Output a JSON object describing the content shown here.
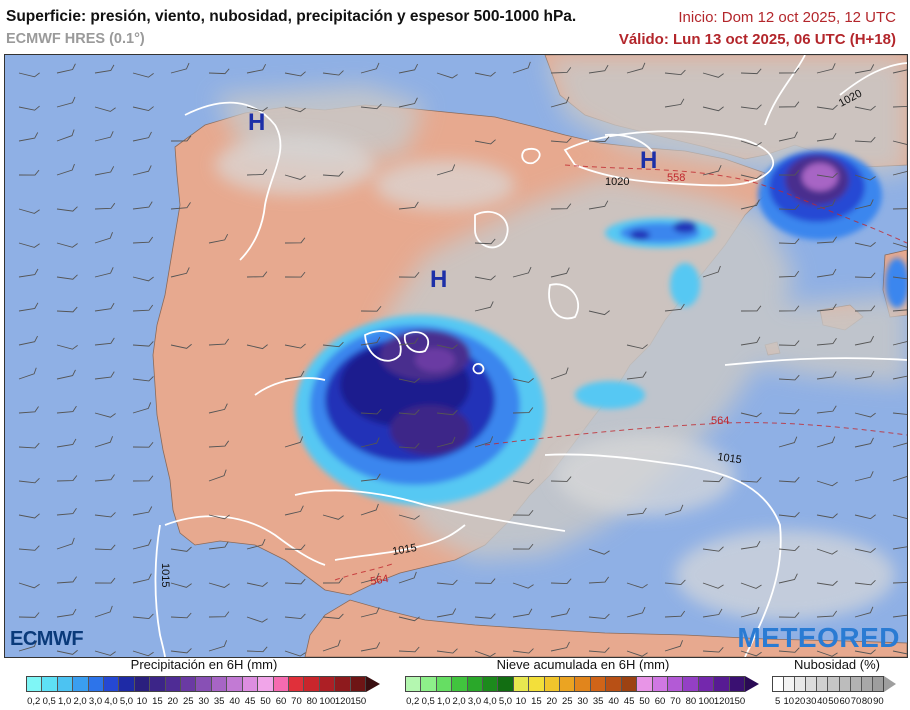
{
  "header": {
    "title": "Superficie: presión, viento, nubosidad, precipitación y espesor 500-1000 hPa.",
    "model": "ECMWF HRES (0.1°)",
    "init": "Inicio: Dom 12 oct 2025, 12 UTC",
    "valid": "Válido: Lun 13 oct 2025, 06 UTC (H+18)"
  },
  "map": {
    "pressure_centers": [
      "H",
      "H",
      "H"
    ],
    "isobar_labels": [
      "1020",
      "1020",
      "1015",
      "1015",
      "1015"
    ],
    "thickness_labels": [
      "558",
      "564",
      "564"
    ]
  },
  "logos": {
    "left": "ECMWF",
    "right": "METEORED"
  },
  "legend": {
    "precip": {
      "title": "Precipitación en 6H (mm)",
      "ticks": [
        "0,2",
        "0,5",
        "1,0",
        "2,0",
        "3,0",
        "4,0",
        "5,0",
        "10",
        "15",
        "20",
        "25",
        "30",
        "35",
        "40",
        "45",
        "50",
        "60",
        "70",
        "80",
        "100",
        "120",
        "150"
      ],
      "colors": [
        "#7ff6f6",
        "#5ee0f5",
        "#4cc3f2",
        "#3a9ef0",
        "#2d74ea",
        "#2548d4",
        "#1e2aa6",
        "#2a1f7e",
        "#3c2588",
        "#4f2c95",
        "#6a3aa3",
        "#8850b5",
        "#a765c5",
        "#c27ad4",
        "#dd8ee0",
        "#f1a5e9",
        "#f56bb0",
        "#e0303a",
        "#c9262c",
        "#ad1f25",
        "#8e1a1d",
        "#6e1515"
      ]
    },
    "snow": {
      "title": "Nieve acumulada en 6H (mm)",
      "ticks": [
        "0,2",
        "0,5",
        "1,0",
        "2,0",
        "3,0",
        "4,0",
        "5,0",
        "10",
        "15",
        "20",
        "25",
        "30",
        "35",
        "40",
        "45",
        "50",
        "60",
        "70",
        "80",
        "100",
        "120",
        "150"
      ],
      "colors": [
        "#b4f7b0",
        "#8ef08a",
        "#66de63",
        "#41c43e",
        "#2aa82a",
        "#1c8a1c",
        "#126e12",
        "#e8e850",
        "#f3df3a",
        "#f1c52c",
        "#eba422",
        "#e1851c",
        "#d06418",
        "#b85015",
        "#9c4212",
        "#e895e7",
        "#d078e3",
        "#b35ad6",
        "#9440c5",
        "#7428ad",
        "#571b93",
        "#3a1072"
      ]
    },
    "cloud": {
      "title": "Nubosidad (%)",
      "ticks": [
        "5",
        "10",
        "20",
        "30",
        "40",
        "50",
        "60",
        "70",
        "80",
        "90"
      ],
      "colors": [
        "#ffffff",
        "#f3f3f3",
        "#e8e8e8",
        "#dcdcdc",
        "#d0d0d0",
        "#c6c6c6",
        "#bcbcbc",
        "#b2b2b2",
        "#a8a8a8",
        "#9e9e9e"
      ]
    }
  }
}
